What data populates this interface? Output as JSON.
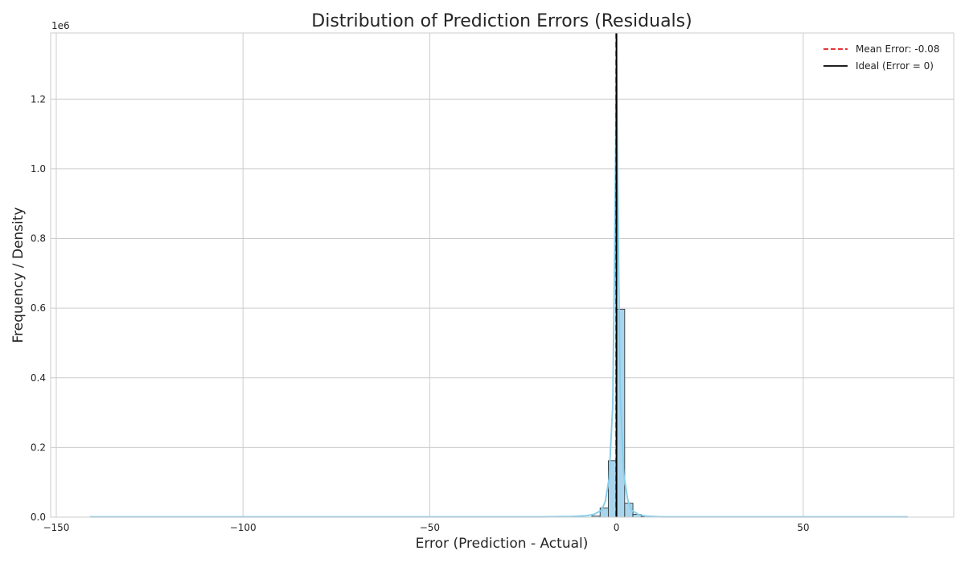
{
  "chart_data": {
    "type": "bar",
    "title": "Distribution of Prediction Errors (Residuals)",
    "xlabel": "Error (Prediction - Actual)",
    "ylabel": "Frequency / Density",
    "y_offset_label": "1e6",
    "xlim": [
      -151.5,
      90.3
    ],
    "ylim": [
      0,
      1.39
    ],
    "x_ticks": [
      -150,
      -100,
      -50,
      0,
      50
    ],
    "x_tick_labels": [
      "−150",
      "−100",
      "−50",
      "0",
      "50"
    ],
    "y_ticks": [
      0.0,
      0.2,
      0.4,
      0.6,
      0.8,
      1.0,
      1.2
    ],
    "y_tick_labels": [
      "0.0",
      "0.2",
      "0.4",
      "0.6",
      "0.8",
      "1.0",
      "1.2"
    ],
    "grid": true,
    "legend_position": "top-right",
    "bin_width": 2.2,
    "bins": [
      {
        "x0": -6.6,
        "value": 0.003
      },
      {
        "x0": -4.4,
        "value": 0.026
      },
      {
        "x0": -2.2,
        "value": 0.162
      },
      {
        "x0": 0.0,
        "value": 0.597
      },
      {
        "x0": 2.2,
        "value": 0.04
      },
      {
        "x0": 4.4,
        "value": 0.008
      },
      {
        "x0": 6.6,
        "value": 0.002
      }
    ],
    "kde": {
      "x": [
        -141,
        -60,
        -30,
        -20,
        -12,
        -8,
        -6,
        -4,
        -3,
        -2,
        -1,
        -0.5,
        0,
        0.5,
        1,
        2,
        3,
        4,
        6,
        8,
        12,
        20,
        40,
        78
      ],
      "y": [
        0.001,
        0.001,
        0.001,
        0.001,
        0.002,
        0.004,
        0.008,
        0.02,
        0.045,
        0.11,
        0.32,
        0.75,
        1.31,
        0.78,
        0.35,
        0.12,
        0.05,
        0.02,
        0.007,
        0.003,
        0.001,
        0.001,
        0.001,
        0.001
      ]
    },
    "series": [
      {
        "name": "Mean Error: -0.08",
        "type": "vline",
        "x": -0.08,
        "color": "#e41a1c",
        "style": "dashed"
      },
      {
        "name": "Ideal (Error = 0)",
        "type": "vline",
        "x": 0,
        "color": "#000000",
        "style": "solid"
      }
    ],
    "colors": {
      "bar_fill": "#a9d5ec",
      "bar_edge": "#1f1f1f",
      "kde_line": "#87ceeb",
      "grid": "#cccccc",
      "frame": "#cccccc"
    }
  }
}
